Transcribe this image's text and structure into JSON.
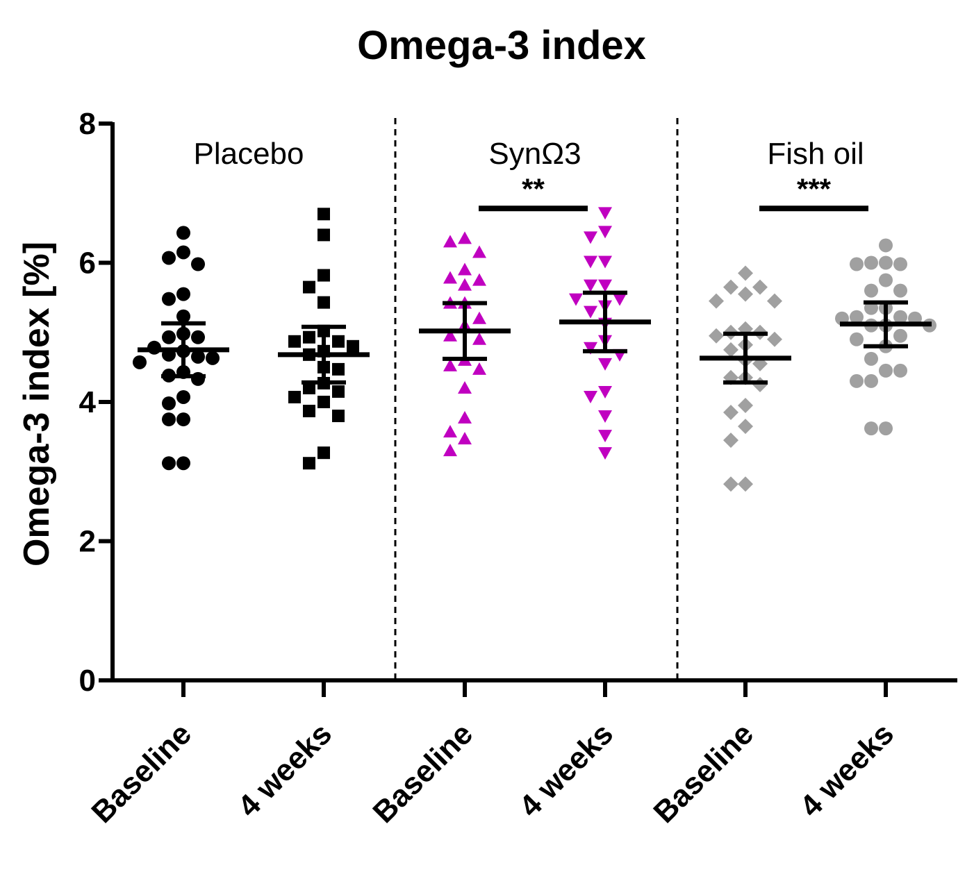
{
  "chart_data": {
    "type": "scatter",
    "title": "Omega-3 index",
    "ylabel": "Omega-3 index [%]",
    "xlabel": "",
    "ylim": [
      0,
      8
    ],
    "yticks": [
      0,
      2,
      4,
      6,
      8
    ],
    "grid": false,
    "categories": [
      "Baseline",
      "4 weeks",
      "Baseline",
      "4 weeks",
      "Baseline",
      "4 weeks"
    ],
    "groups": [
      {
        "name": "Placebo",
        "categories": [
          0,
          1
        ]
      },
      {
        "name": "SynΩ3",
        "categories": [
          2,
          3
        ]
      },
      {
        "name": "Fish oil",
        "categories": [
          4,
          5
        ]
      }
    ],
    "series": [
      {
        "group": "Placebo",
        "timepoint": "Baseline",
        "marker": "circle",
        "color": "#000000",
        "mean": 4.75,
        "sem_low": 4.37,
        "sem_high": 5.13,
        "values": [
          6.43,
          6.15,
          6.07,
          5.98,
          5.55,
          5.48,
          5.23,
          4.98,
          4.93,
          4.93,
          4.78,
          4.73,
          4.68,
          4.65,
          4.63,
          4.57,
          4.43,
          4.38,
          4.33,
          4.07,
          3.98,
          3.75,
          3.75,
          3.12,
          3.12
        ]
      },
      {
        "group": "Placebo",
        "timepoint": "4 weeks",
        "marker": "square",
        "color": "#000000",
        "mean": 4.68,
        "sem_low": 4.28,
        "sem_high": 5.08,
        "values": [
          6.7,
          6.4,
          5.82,
          5.65,
          5.43,
          5.02,
          4.93,
          4.87,
          4.87,
          4.8,
          4.73,
          4.68,
          4.5,
          4.47,
          4.27,
          4.2,
          4.15,
          4.07,
          4.0,
          3.87,
          3.8,
          3.27,
          3.12
        ]
      },
      {
        "group": "SynΩ3",
        "timepoint": "Baseline",
        "marker": "triangle-up",
        "color": "#c000c0",
        "mean": 5.02,
        "sem_low": 4.62,
        "sem_high": 5.42,
        "values": [
          6.35,
          6.3,
          6.15,
          5.9,
          5.78,
          5.75,
          5.68,
          5.42,
          5.42,
          5.2,
          5.1,
          4.95,
          4.9,
          4.6,
          4.52,
          4.47,
          4.2,
          3.77,
          3.57,
          3.47,
          3.3
        ]
      },
      {
        "group": "SynΩ3",
        "timepoint": "4 weeks",
        "marker": "triangle-down",
        "color": "#c000c0",
        "mean": 5.15,
        "sem_low": 4.73,
        "sem_high": 5.57,
        "values": [
          6.72,
          6.45,
          6.37,
          6.02,
          6.02,
          5.68,
          5.68,
          5.48,
          5.48,
          5.38,
          5.3,
          5.13,
          4.88,
          4.78,
          4.68,
          4.55,
          4.15,
          4.08,
          3.8,
          3.52,
          3.27
        ]
      },
      {
        "group": "Fish oil",
        "timepoint": "Baseline",
        "marker": "diamond",
        "color": "#a0a0a0",
        "mean": 4.63,
        "sem_low": 4.28,
        "sem_high": 4.98,
        "values": [
          5.85,
          5.65,
          5.65,
          5.55,
          5.45,
          5.45,
          5.05,
          5.0,
          5.0,
          4.95,
          4.9,
          4.82,
          4.75,
          4.6,
          4.55,
          4.35,
          4.35,
          4.25,
          3.95,
          3.85,
          3.65,
          3.45,
          2.82,
          2.82
        ]
      },
      {
        "group": "Fish oil",
        "timepoint": "4 weeks",
        "marker": "circle",
        "color": "#a0a0a0",
        "mean": 5.12,
        "sem_low": 4.8,
        "sem_high": 5.43,
        "values": [
          6.25,
          6.0,
          6.0,
          5.98,
          5.98,
          5.75,
          5.6,
          5.6,
          5.35,
          5.35,
          5.22,
          5.22,
          5.2,
          5.2,
          5.1,
          5.1,
          5.1,
          4.95,
          4.9,
          4.8,
          4.62,
          4.45,
          4.45,
          4.3,
          4.3,
          3.62,
          3.62
        ]
      }
    ],
    "significance": [
      {
        "label": "**",
        "from": 2,
        "to": 3,
        "y": 6.78
      },
      {
        "label": "***",
        "from": 4,
        "to": 5,
        "y": 6.78
      }
    ]
  }
}
